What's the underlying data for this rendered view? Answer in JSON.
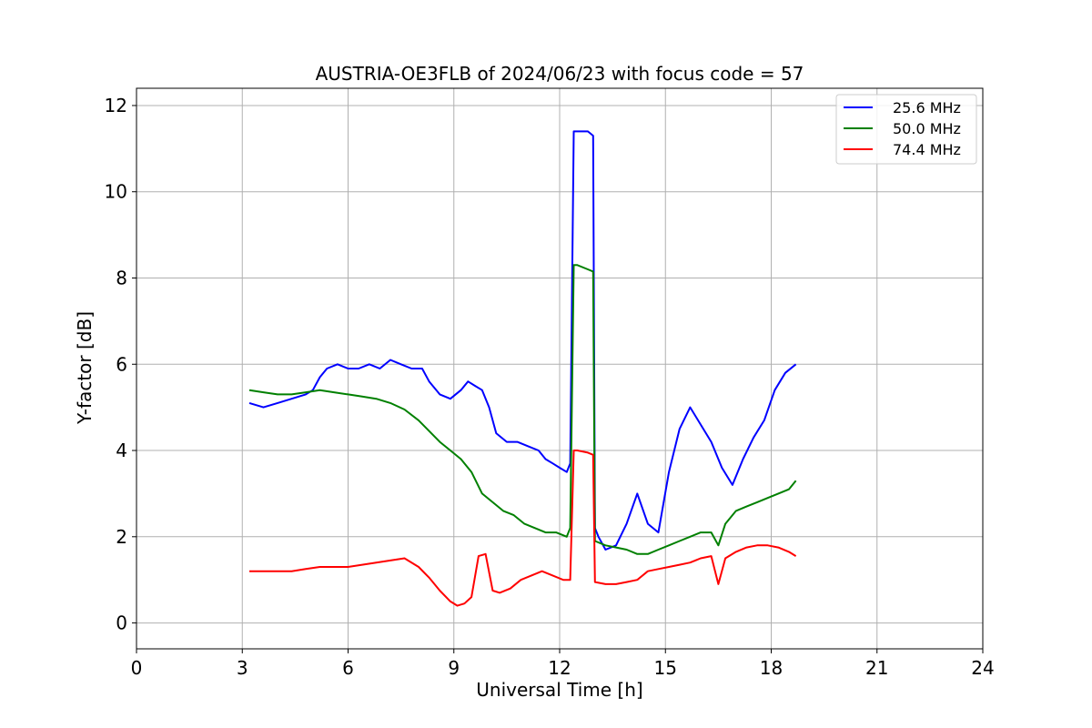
{
  "chart_data": {
    "type": "line",
    "title": "AUSTRIA-OE3FLB of 2024/06/23 with focus code = 57",
    "xlabel": "Universal Time [h]",
    "ylabel": "Y-factor [dB]",
    "xlim": [
      0,
      24
    ],
    "ylim": [
      -0.6,
      12.4
    ],
    "xticks": [
      0,
      3,
      6,
      9,
      12,
      15,
      18,
      21,
      24
    ],
    "yticks": [
      0,
      2,
      4,
      6,
      8,
      10,
      12
    ],
    "grid": true,
    "legend_position": "top-right",
    "series": [
      {
        "name": "25.6 MHz",
        "color": "#0000ff",
        "x": [
          3.2,
          3.6,
          4.0,
          4.4,
          4.8,
          5.0,
          5.2,
          5.4,
          5.7,
          6.0,
          6.3,
          6.6,
          6.9,
          7.2,
          7.5,
          7.8,
          8.1,
          8.3,
          8.6,
          8.9,
          9.2,
          9.4,
          9.6,
          9.8,
          10.0,
          10.2,
          10.5,
          10.8,
          11.1,
          11.4,
          11.6,
          11.8,
          12.0,
          12.2,
          12.3,
          12.4,
          12.5,
          12.8,
          12.95,
          13.0,
          13.1,
          13.3,
          13.6,
          13.9,
          14.2,
          14.5,
          14.8,
          15.1,
          15.4,
          15.7,
          16.0,
          16.3,
          16.6,
          16.9,
          17.2,
          17.5,
          17.8,
          18.1,
          18.4,
          18.7
        ],
        "values": [
          5.1,
          5.0,
          5.1,
          5.2,
          5.3,
          5.4,
          5.7,
          5.9,
          6.0,
          5.9,
          5.9,
          6.0,
          5.9,
          6.1,
          6.0,
          5.9,
          5.9,
          5.6,
          5.3,
          5.2,
          5.4,
          5.6,
          5.5,
          5.4,
          5.0,
          4.4,
          4.2,
          4.2,
          4.1,
          4.0,
          3.8,
          3.7,
          3.6,
          3.5,
          3.7,
          11.4,
          11.4,
          11.4,
          11.3,
          2.2,
          2.0,
          1.7,
          1.8,
          2.3,
          3.0,
          2.3,
          2.1,
          3.5,
          4.5,
          5.0,
          4.6,
          4.2,
          3.6,
          3.2,
          3.8,
          4.3,
          4.7,
          5.4,
          5.8,
          6.0
        ]
      },
      {
        "name": "50.0 MHz",
        "color": "#008000",
        "x": [
          3.2,
          3.6,
          4.0,
          4.4,
          4.8,
          5.2,
          5.6,
          6.0,
          6.4,
          6.8,
          7.2,
          7.6,
          8.0,
          8.3,
          8.6,
          8.9,
          9.2,
          9.5,
          9.8,
          10.1,
          10.4,
          10.7,
          11.0,
          11.3,
          11.6,
          11.9,
          12.2,
          12.3,
          12.4,
          12.5,
          12.8,
          12.95,
          13.0,
          13.3,
          13.6,
          13.9,
          14.2,
          14.5,
          14.8,
          15.1,
          15.4,
          15.7,
          16.0,
          16.3,
          16.5,
          16.7,
          17.0,
          17.3,
          17.6,
          17.9,
          18.2,
          18.5,
          18.7
        ],
        "values": [
          5.4,
          5.35,
          5.3,
          5.3,
          5.35,
          5.4,
          5.35,
          5.3,
          5.25,
          5.2,
          5.1,
          4.95,
          4.7,
          4.45,
          4.2,
          4.0,
          3.8,
          3.5,
          3.0,
          2.8,
          2.6,
          2.5,
          2.3,
          2.2,
          2.1,
          2.1,
          2.0,
          2.2,
          8.3,
          8.3,
          8.2,
          8.15,
          1.9,
          1.8,
          1.75,
          1.7,
          1.6,
          1.6,
          1.7,
          1.8,
          1.9,
          2.0,
          2.1,
          2.1,
          1.8,
          2.3,
          2.6,
          2.7,
          2.8,
          2.9,
          3.0,
          3.1,
          3.3
        ]
      },
      {
        "name": "74.4 MHz",
        "color": "#ff0000",
        "x": [
          3.2,
          3.6,
          4.0,
          4.4,
          4.8,
          5.2,
          5.6,
          6.0,
          6.4,
          6.8,
          7.2,
          7.6,
          8.0,
          8.3,
          8.6,
          8.9,
          9.1,
          9.3,
          9.5,
          9.7,
          9.9,
          10.1,
          10.3,
          10.6,
          10.9,
          11.2,
          11.5,
          11.8,
          12.1,
          12.3,
          12.4,
          12.5,
          12.8,
          12.95,
          13.0,
          13.3,
          13.6,
          13.9,
          14.2,
          14.5,
          14.8,
          15.1,
          15.4,
          15.7,
          16.0,
          16.3,
          16.5,
          16.7,
          17.0,
          17.3,
          17.6,
          17.9,
          18.2,
          18.5,
          18.7
        ],
        "values": [
          1.2,
          1.2,
          1.2,
          1.2,
          1.25,
          1.3,
          1.3,
          1.3,
          1.35,
          1.4,
          1.45,
          1.5,
          1.3,
          1.05,
          0.75,
          0.5,
          0.4,
          0.45,
          0.6,
          1.55,
          1.6,
          0.75,
          0.7,
          0.8,
          1.0,
          1.1,
          1.2,
          1.1,
          1.0,
          1.0,
          4.0,
          4.0,
          3.95,
          3.9,
          0.95,
          0.9,
          0.9,
          0.95,
          1.0,
          1.2,
          1.25,
          1.3,
          1.35,
          1.4,
          1.5,
          1.55,
          0.9,
          1.5,
          1.65,
          1.75,
          1.8,
          1.8,
          1.75,
          1.65,
          1.55
        ]
      }
    ]
  }
}
